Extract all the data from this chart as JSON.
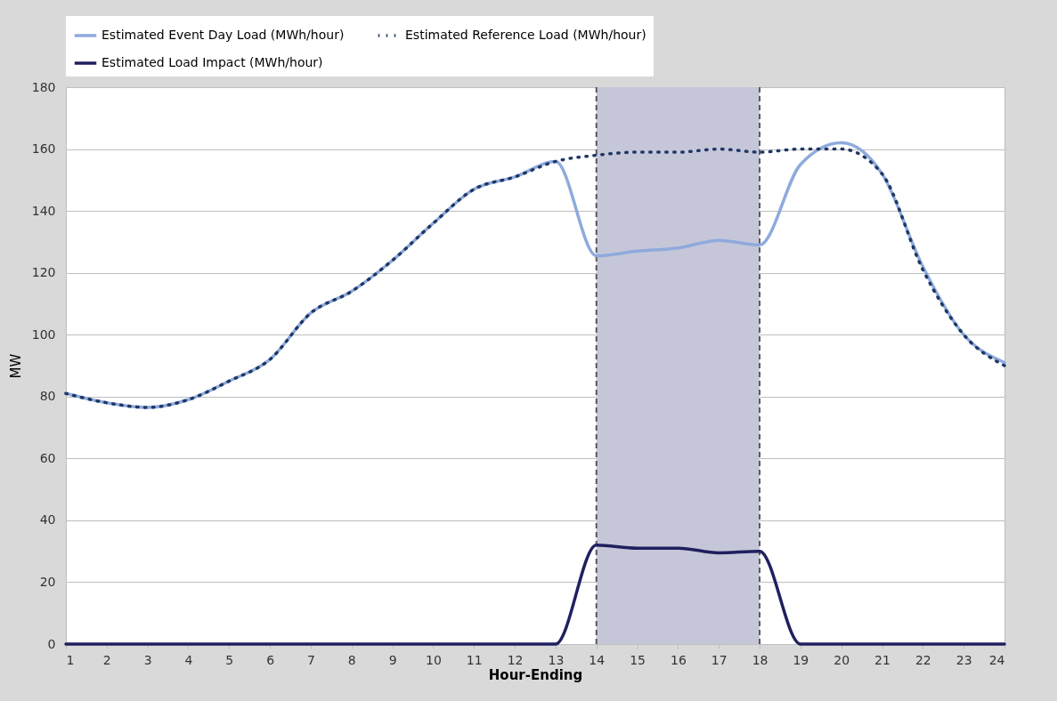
{
  "chart_data": {
    "type": "line",
    "xlabel": "Hour-Ending",
    "ylabel": "MW",
    "x": [
      1,
      2,
      3,
      4,
      5,
      6,
      7,
      8,
      9,
      10,
      11,
      12,
      13,
      14,
      15,
      16,
      17,
      18,
      19,
      20,
      21,
      22,
      23,
      24
    ],
    "series": [
      {
        "name": "Estimated Event Day Load (MWh/hour)",
        "color": "#8faadc",
        "line_style": "solid",
        "values": [
          81,
          78,
          76.5,
          79,
          85,
          92,
          107,
          114,
          124,
          136,
          147,
          151,
          156,
          125.5,
          127,
          128,
          130.5,
          129,
          155,
          162,
          152,
          122,
          100,
          91
        ]
      },
      {
        "name": "Estimated Reference Load (MWh/hour)",
        "color": "#1f3864",
        "line_style": "dotted",
        "values": [
          81,
          78,
          76.5,
          79,
          85,
          92,
          107,
          114,
          124,
          136,
          147,
          151,
          156,
          158,
          159,
          159,
          160,
          159,
          160,
          160,
          152,
          121,
          100,
          90
        ]
      },
      {
        "name": "Estimated Load Impact (MWh/hour)",
        "color": "#202060",
        "line_style": "solid",
        "values": [
          0,
          0,
          0,
          0,
          0,
          0,
          0,
          0,
          0,
          0,
          0,
          0,
          0,
          32,
          31,
          31,
          29.5,
          30,
          0,
          0,
          0,
          0,
          0,
          0
        ]
      }
    ],
    "xlim": [
      1,
      24
    ],
    "xticks": [
      1,
      2,
      3,
      4,
      5,
      6,
      7,
      8,
      9,
      10,
      11,
      12,
      13,
      14,
      15,
      16,
      17,
      18,
      19,
      20,
      21,
      22,
      23,
      24
    ],
    "ylim": [
      0,
      180
    ],
    "yticks": [
      0,
      20,
      40,
      60,
      80,
      100,
      120,
      140,
      160,
      180
    ],
    "bands": [
      {
        "axis": "x",
        "from": 14,
        "to": 18,
        "color": "#c5c7d9"
      }
    ],
    "ref_lines": [
      {
        "axis": "x",
        "value": 14,
        "color": "#595959",
        "line_style": "dashed"
      },
      {
        "axis": "x",
        "value": 18,
        "color": "#595959",
        "line_style": "dashed"
      }
    ],
    "grid": "y",
    "legend": "top",
    "marker": "none"
  }
}
